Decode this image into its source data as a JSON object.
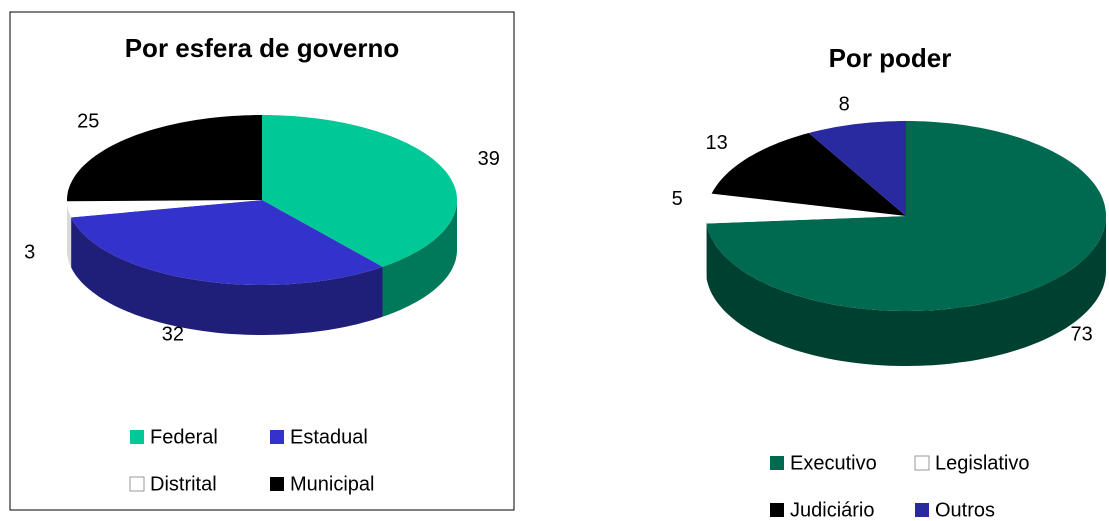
{
  "chart_data": [
    {
      "type": "pie3d",
      "title": "Por esfera de governo",
      "categories": [
        "Federal",
        "Estadual",
        "Distrital",
        "Municipal"
      ],
      "values": [
        39,
        32,
        3,
        25
      ],
      "colors": [
        "#00c896",
        "#3333cc",
        "#ffffff",
        "#000000"
      ]
    },
    {
      "type": "pie3d",
      "title": "Por poder",
      "categories": [
        "Executivo",
        "Legislativo",
        "Judiciário",
        "Outros"
      ],
      "values": [
        73,
        5,
        13,
        8
      ],
      "colors": [
        "#006a50",
        "#ffffff",
        "#000000",
        "#2a2aa0"
      ]
    }
  ]
}
